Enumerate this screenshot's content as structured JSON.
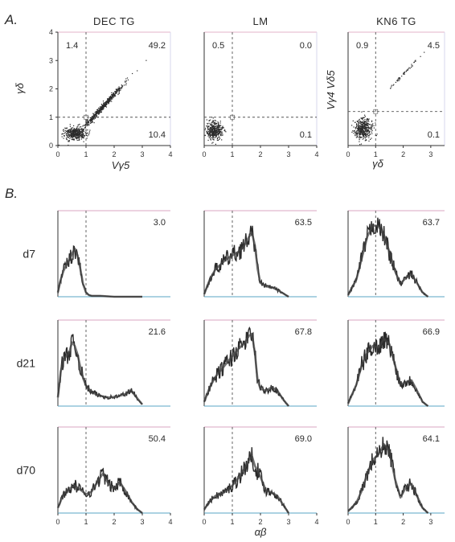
{
  "figure": {
    "panel_a_label": "A.",
    "panel_b_label": "B."
  },
  "chart_data": [
    {
      "type": "scatter",
      "panel": "A",
      "title": "DEC TG",
      "xlabel": "Vγ5",
      "ylabel": "γδ",
      "xlim": [
        0,
        4
      ],
      "ylim": [
        0,
        4
      ],
      "xticks": [
        "0",
        "1",
        "2",
        "3",
        "4"
      ],
      "yticks": [
        "0",
        "1",
        "2",
        "3",
        "4"
      ],
      "gates": {
        "x": 1.0,
        "y": 1.0
      },
      "quadrants": {
        "upper_left": "1.4",
        "upper_right": "49.2",
        "lower_left": "",
        "lower_right": "10.4"
      },
      "populations": [
        {
          "label": "",
          "center": [
            1.6,
            1.4
          ],
          "spread": [
            0.35,
            0.3
          ],
          "diagonal": true
        },
        {
          "label": "",
          "center": [
            0.6,
            0.45
          ],
          "spread": [
            0.35,
            0.2
          ],
          "diagonal": false
        }
      ]
    },
    {
      "type": "scatter",
      "panel": "A",
      "title": "LM",
      "xlabel": "",
      "ylabel": "",
      "xlim": [
        0,
        4
      ],
      "ylim": [
        0,
        4
      ],
      "xticks": [
        "0",
        "1",
        "2",
        "3",
        "4"
      ],
      "yticks": [],
      "gates": {
        "x": 1.0,
        "y": 1.0
      },
      "quadrants": {
        "upper_left": "0.5",
        "upper_right": "0.0",
        "lower_left": "",
        "lower_right": "0.1"
      },
      "populations": [
        {
          "label": "",
          "center": [
            0.35,
            0.55
          ],
          "spread": [
            0.25,
            0.28
          ],
          "diagonal": false
        }
      ]
    },
    {
      "type": "scatter",
      "panel": "A",
      "title": "KN6 TG",
      "xlabel": "γδ",
      "ylabel": "Vγ4 Vδ5",
      "xlim": [
        0,
        3.5
      ],
      "ylim": [
        0,
        4
      ],
      "xticks": [
        "0",
        "1",
        "2",
        "3"
      ],
      "yticks": [],
      "gates": {
        "x": 1.0,
        "y": 1.2
      },
      "quadrants": {
        "upper_left": "0.9",
        "upper_right": "4.5",
        "lower_left": "",
        "lower_right": "0.1"
      },
      "populations": [
        {
          "label": "",
          "center": [
            0.55,
            0.6
          ],
          "spread": [
            0.3,
            0.33
          ],
          "diagonal": false
        },
        {
          "label": "",
          "center": [
            2.05,
            2.6
          ],
          "spread": [
            0.25,
            0.12
          ],
          "diagonal": true
        }
      ]
    },
    {
      "type": "area",
      "panel": "B",
      "xlabel": "αβ",
      "row_labels": [
        "d7",
        "d21",
        "d70"
      ],
      "column_titles": [
        "DEC TG",
        "LM",
        "KN6 TG"
      ],
      "gate_x": 1.0,
      "histograms": [
        {
          "row": "d7",
          "column": "DEC TG",
          "percent": "3.0",
          "xlim": [
            0,
            4
          ],
          "x": [
            0,
            0.1,
            0.2,
            0.3,
            0.4,
            0.5,
            0.6,
            0.7,
            0.8,
            0.9,
            1.0,
            1.1,
            1.2,
            1.5,
            2.0,
            2.5,
            3.0
          ],
          "y": [
            5,
            20,
            30,
            37,
            42,
            50,
            56,
            48,
            32,
            14,
            5,
            2,
            1,
            1,
            0,
            0,
            0
          ]
        },
        {
          "row": "d7",
          "column": "LM",
          "percent": "63.5",
          "xlim": [
            0,
            4
          ],
          "x": [
            0,
            0.2,
            0.4,
            0.6,
            0.8,
            1.0,
            1.2,
            1.4,
            1.6,
            1.7,
            1.8,
            1.9,
            2.0,
            2.2,
            2.4,
            2.6,
            2.8,
            3.0
          ],
          "y": [
            3,
            20,
            32,
            38,
            44,
            48,
            52,
            58,
            70,
            74,
            60,
            32,
            16,
            12,
            11,
            8,
            4,
            0
          ]
        },
        {
          "row": "d7",
          "column": "KN6 TG",
          "percent": "63.7",
          "xlim": [
            0,
            3.5
          ],
          "x": [
            0,
            0.3,
            0.5,
            0.7,
            0.9,
            1.1,
            1.3,
            1.5,
            1.7,
            1.9,
            2.1,
            2.3,
            2.5,
            2.7,
            2.9
          ],
          "y": [
            2,
            20,
            45,
            70,
            83,
            82,
            72,
            52,
            30,
            15,
            22,
            26,
            16,
            5,
            0
          ]
        },
        {
          "row": "d21",
          "column": "DEC TG",
          "percent": "21.6",
          "xlim": [
            0,
            4
          ],
          "x": [
            0,
            0.1,
            0.2,
            0.3,
            0.4,
            0.5,
            0.6,
            0.7,
            0.8,
            0.9,
            1.0,
            1.2,
            1.5,
            1.8,
            2.1,
            2.4,
            2.6,
            2.8,
            3.0
          ],
          "y": [
            10,
            40,
            55,
            58,
            62,
            74,
            70,
            60,
            45,
            32,
            24,
            16,
            12,
            10,
            11,
            14,
            18,
            10,
            2
          ]
        },
        {
          "row": "d21",
          "column": "LM",
          "percent": "67.8",
          "xlim": [
            0,
            4
          ],
          "x": [
            0,
            0.2,
            0.4,
            0.6,
            0.8,
            1.0,
            1.2,
            1.4,
            1.6,
            1.7,
            1.8,
            1.9,
            2.0,
            2.2,
            2.4,
            2.6,
            2.8,
            3.0
          ],
          "y": [
            5,
            22,
            34,
            42,
            50,
            58,
            66,
            72,
            82,
            84,
            62,
            30,
            20,
            18,
            22,
            18,
            8,
            0
          ]
        },
        {
          "row": "d21",
          "column": "KN6 TG",
          "percent": "66.9",
          "xlim": [
            0,
            3.5
          ],
          "x": [
            0,
            0.3,
            0.5,
            0.7,
            0.9,
            1.1,
            1.3,
            1.5,
            1.7,
            1.9,
            2.1,
            2.3,
            2.5,
            2.7,
            2.9
          ],
          "y": [
            3,
            25,
            48,
            62,
            70,
            68,
            78,
            72,
            48,
            25,
            28,
            30,
            18,
            5,
            0
          ]
        },
        {
          "row": "d70",
          "column": "DEC TG",
          "percent": "50.4",
          "xlim": [
            0,
            4
          ],
          "x": [
            0,
            0.2,
            0.4,
            0.6,
            0.8,
            1.0,
            1.2,
            1.4,
            1.6,
            1.8,
            2.0,
            2.2,
            2.4,
            2.6,
            2.8,
            3.0
          ],
          "y": [
            6,
            22,
            28,
            32,
            27,
            22,
            25,
            36,
            46,
            34,
            28,
            36,
            26,
            14,
            5,
            0
          ]
        },
        {
          "row": "d70",
          "column": "LM",
          "percent": "69.0",
          "xlim": [
            0,
            4
          ],
          "x": [
            0,
            0.2,
            0.4,
            0.6,
            0.8,
            1.0,
            1.2,
            1.4,
            1.6,
            1.7,
            1.8,
            2.0,
            2.2,
            2.4,
            2.6,
            2.8,
            3.0
          ],
          "y": [
            4,
            14,
            20,
            22,
            26,
            32,
            40,
            50,
            62,
            66,
            55,
            42,
            26,
            24,
            20,
            10,
            0
          ]
        },
        {
          "row": "d70",
          "column": "KN6 TG",
          "percent": "64.1",
          "xlim": [
            0,
            3.5
          ],
          "x": [
            0,
            0.3,
            0.5,
            0.7,
            0.9,
            1.1,
            1.3,
            1.5,
            1.7,
            1.9,
            2.1,
            2.3,
            2.5,
            2.7,
            2.9
          ],
          "y": [
            2,
            12,
            26,
            46,
            62,
            68,
            80,
            72,
            40,
            18,
            30,
            34,
            20,
            6,
            0
          ]
        }
      ],
      "xticks_left": [
        "0",
        "1",
        "2",
        "3",
        "4"
      ],
      "xticks_mid": [
        "0",
        "1",
        "2",
        "3",
        "4"
      ],
      "xticks_right": [
        "0",
        "1",
        "2",
        "3"
      ]
    }
  ]
}
